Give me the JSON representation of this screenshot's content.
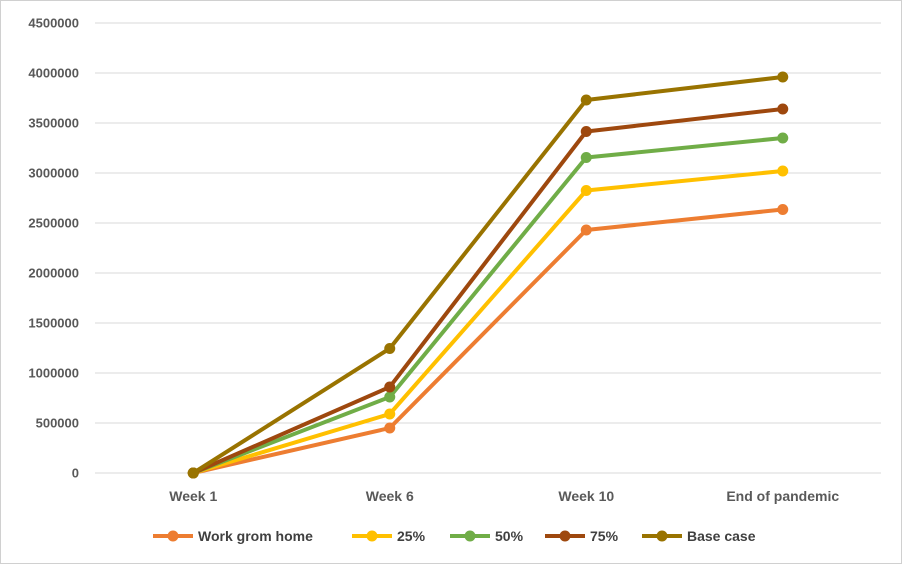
{
  "chart_data": {
    "type": "line",
    "categories": [
      "Week 1",
      "Week 6",
      "Week 10",
      "End of pandemic"
    ],
    "series": [
      {
        "name": "Work grom home",
        "color": "#ED7D31",
        "values": [
          0,
          450000,
          2430000,
          2635000
        ]
      },
      {
        "name": "25%",
        "color": "#FFC000",
        "values": [
          0,
          590000,
          2825000,
          3020000
        ]
      },
      {
        "name": "50%",
        "color": "#70AD47",
        "values": [
          0,
          760000,
          3155000,
          3350000
        ]
      },
      {
        "name": "75%",
        "color": "#9E480E",
        "values": [
          0,
          860000,
          3415000,
          3640000
        ]
      },
      {
        "name": "Base case",
        "color": "#997300",
        "values": [
          0,
          1245000,
          3730000,
          3960000
        ]
      }
    ],
    "ylim": [
      0,
      4500000
    ],
    "yticks": [
      "0",
      "500000",
      "1000000",
      "1500000",
      "2000000",
      "2500000",
      "3000000",
      "3500000",
      "4000000",
      "4500000"
    ],
    "grid": true,
    "legend_position": "bottom",
    "title": "",
    "xlabel": "",
    "ylabel": ""
  }
}
